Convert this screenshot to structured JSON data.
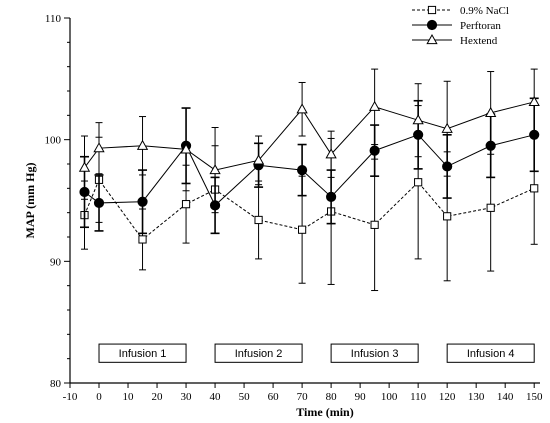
{
  "chart_data": {
    "type": "line",
    "xlabel": "Time (min)",
    "ylabel": "MAP (mm Hg)",
    "xlim": [
      -10,
      152
    ],
    "ylim": [
      80,
      110
    ],
    "xticks": [
      "-10",
      "0",
      "10",
      "20",
      "30",
      "40",
      "50",
      "60",
      "70",
      "80",
      "90",
      "100",
      "110",
      "120",
      "130",
      "140",
      "150"
    ],
    "yticks": [
      "80",
      "90",
      "100",
      "110"
    ],
    "grid": false,
    "legend_position": "top-right",
    "series": [
      {
        "name": "0.9%  NaCl",
        "marker": "open-square",
        "line": "dashed",
        "x": [
          -5,
          0,
          15,
          30,
          40,
          55,
          70,
          80,
          95,
          110,
          120,
          135,
          150
        ],
        "y": [
          93.8,
          96.7,
          91.8,
          94.7,
          95.9,
          93.4,
          92.6,
          94.1,
          93.0,
          96.5,
          93.7,
          94.4,
          96.0
        ],
        "err": [
          2.8,
          3.5,
          2.5,
          3.2,
          3.6,
          3.2,
          4.4,
          6.0,
          5.4,
          6.3,
          5.3,
          5.2,
          4.6
        ]
      },
      {
        "name": "Perftoran",
        "marker": "filled-circle",
        "line": "solid",
        "x": [
          -5,
          0,
          15,
          30,
          40,
          55,
          70,
          80,
          95,
          110,
          120,
          135,
          150
        ],
        "y": [
          95.7,
          94.8,
          94.9,
          99.5,
          94.6,
          97.9,
          97.5,
          95.3,
          99.1,
          100.4,
          97.8,
          99.5,
          100.4
        ],
        "err": [
          2.9,
          2.3,
          2.6,
          3.1,
          2.3,
          1.8,
          2.1,
          2.2,
          2.1,
          2.8,
          2.6,
          2.6,
          3.0
        ]
      },
      {
        "name": "Hextend",
        "marker": "open-triangle",
        "line": "solid",
        "x": [
          -5,
          0,
          15,
          30,
          40,
          55,
          70,
          80,
          95,
          110,
          120,
          135,
          150
        ],
        "y": [
          97.7,
          99.3,
          99.5,
          99.2,
          97.5,
          98.3,
          102.5,
          98.8,
          102.7,
          101.6,
          100.9,
          102.2,
          103.1
        ],
        "err": [
          2.6,
          2.1,
          2.4,
          3.4,
          3.5,
          2.0,
          2.2,
          1.9,
          3.1,
          3.0,
          3.9,
          3.4,
          2.7
        ]
      }
    ],
    "annotations": [
      {
        "label": "Infusion 1",
        "x_start": 0,
        "x_end": 30
      },
      {
        "label": "Infusion 2",
        "x_start": 40,
        "x_end": 70
      },
      {
        "label": "Infusion 3",
        "x_start": 80,
        "x_end": 110
      },
      {
        "label": "Infusion 4",
        "x_start": 120,
        "x_end": 150
      }
    ]
  }
}
